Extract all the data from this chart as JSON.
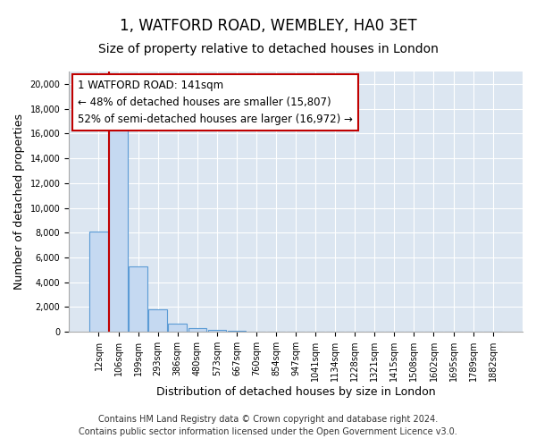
{
  "title": "1, WATFORD ROAD, WEMBLEY, HA0 3ET",
  "subtitle": "Size of property relative to detached houses in London",
  "xlabel": "Distribution of detached houses by size in London",
  "ylabel": "Number of detached properties",
  "footer_line1": "Contains HM Land Registry data © Crown copyright and database right 2024.",
  "footer_line2": "Contains public sector information licensed under the Open Government Licence v3.0.",
  "annotation_line1": "1 WATFORD ROAD: 141sqm",
  "annotation_line2": "← 48% of detached houses are smaller (15,807)",
  "annotation_line3": "52% of semi-detached houses are larger (16,972) →",
  "bar_edge_color": "#5b9bd5",
  "bar_face_color": "#c5d9f1",
  "categories": [
    "12sqm",
    "106sqm",
    "199sqm",
    "293sqm",
    "386sqm",
    "480sqm",
    "573sqm",
    "667sqm",
    "760sqm",
    "854sqm",
    "947sqm",
    "1041sqm",
    "1134sqm",
    "1228sqm",
    "1321sqm",
    "1415sqm",
    "1508sqm",
    "1602sqm",
    "1695sqm",
    "1789sqm",
    "1882sqm"
  ],
  "values": [
    8100,
    16500,
    5300,
    1800,
    700,
    280,
    170,
    100,
    40,
    0,
    0,
    0,
    0,
    0,
    0,
    0,
    0,
    0,
    0,
    0,
    0
  ],
  "ylim": [
    0,
    21000
  ],
  "yticks": [
    0,
    2000,
    4000,
    6000,
    8000,
    10000,
    12000,
    14000,
    16000,
    18000,
    20000
  ],
  "vline_color": "#c00000",
  "annotation_box_color": "#c00000",
  "background_color": "#dce6f1",
  "grid_color": "#ffffff",
  "title_fontsize": 12,
  "subtitle_fontsize": 10,
  "label_fontsize": 9,
  "tick_fontsize": 7,
  "footer_fontsize": 7,
  "annotation_fontsize": 8.5
}
